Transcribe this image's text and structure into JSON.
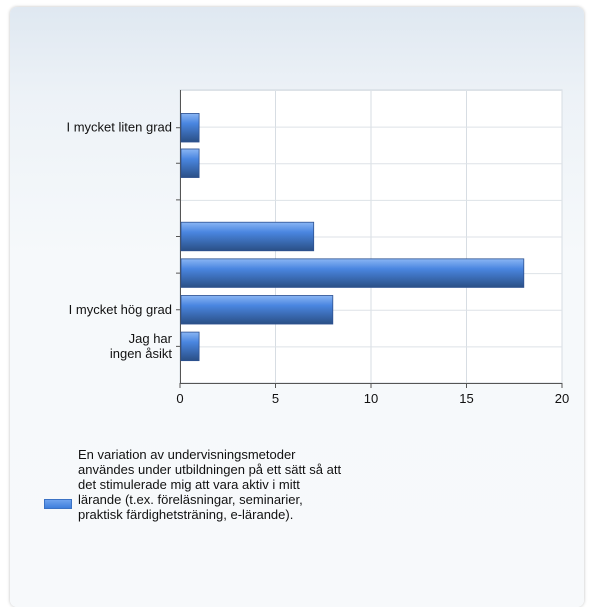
{
  "chart_data": {
    "type": "bar",
    "orientation": "horizontal",
    "categories": [
      "I mycket liten grad",
      "",
      "",
      "",
      "",
      "I mycket hög grad",
      "Jag har ingen åsikt"
    ],
    "category_lines": [
      [
        "I mycket liten grad"
      ],
      [
        ""
      ],
      [
        ""
      ],
      [
        ""
      ],
      [
        ""
      ],
      [
        "I mycket hög grad"
      ],
      [
        "Jag har",
        "ingen åsikt"
      ]
    ],
    "series": [
      {
        "name": "En variation av undervisningsmetoder användes under utbildningen på ett sätt så att det stimulerade mig att vara aktiv i mitt lärande (t.ex. föreläsningar, seminarier, praktisk färdighetsträning, e-lärande).",
        "values": [
          1,
          1,
          0,
          7,
          18,
          8,
          1
        ]
      }
    ],
    "xlim": [
      0,
      20
    ],
    "xticks": [
      "0",
      "5",
      "10",
      "15",
      "20"
    ],
    "grid": true,
    "legend_position": "bottom-left",
    "bar_color": "#4a86e0",
    "bar_dark": "#2a4f86"
  },
  "legend": {
    "label": "En variation av undervisningsmetoder användes under utbildningen på ett sätt så att det stimulerade mig att vara aktiv i mitt lärande (t.ex. föreläsningar, seminarier, praktisk färdighetsträning, e-lärande)."
  }
}
